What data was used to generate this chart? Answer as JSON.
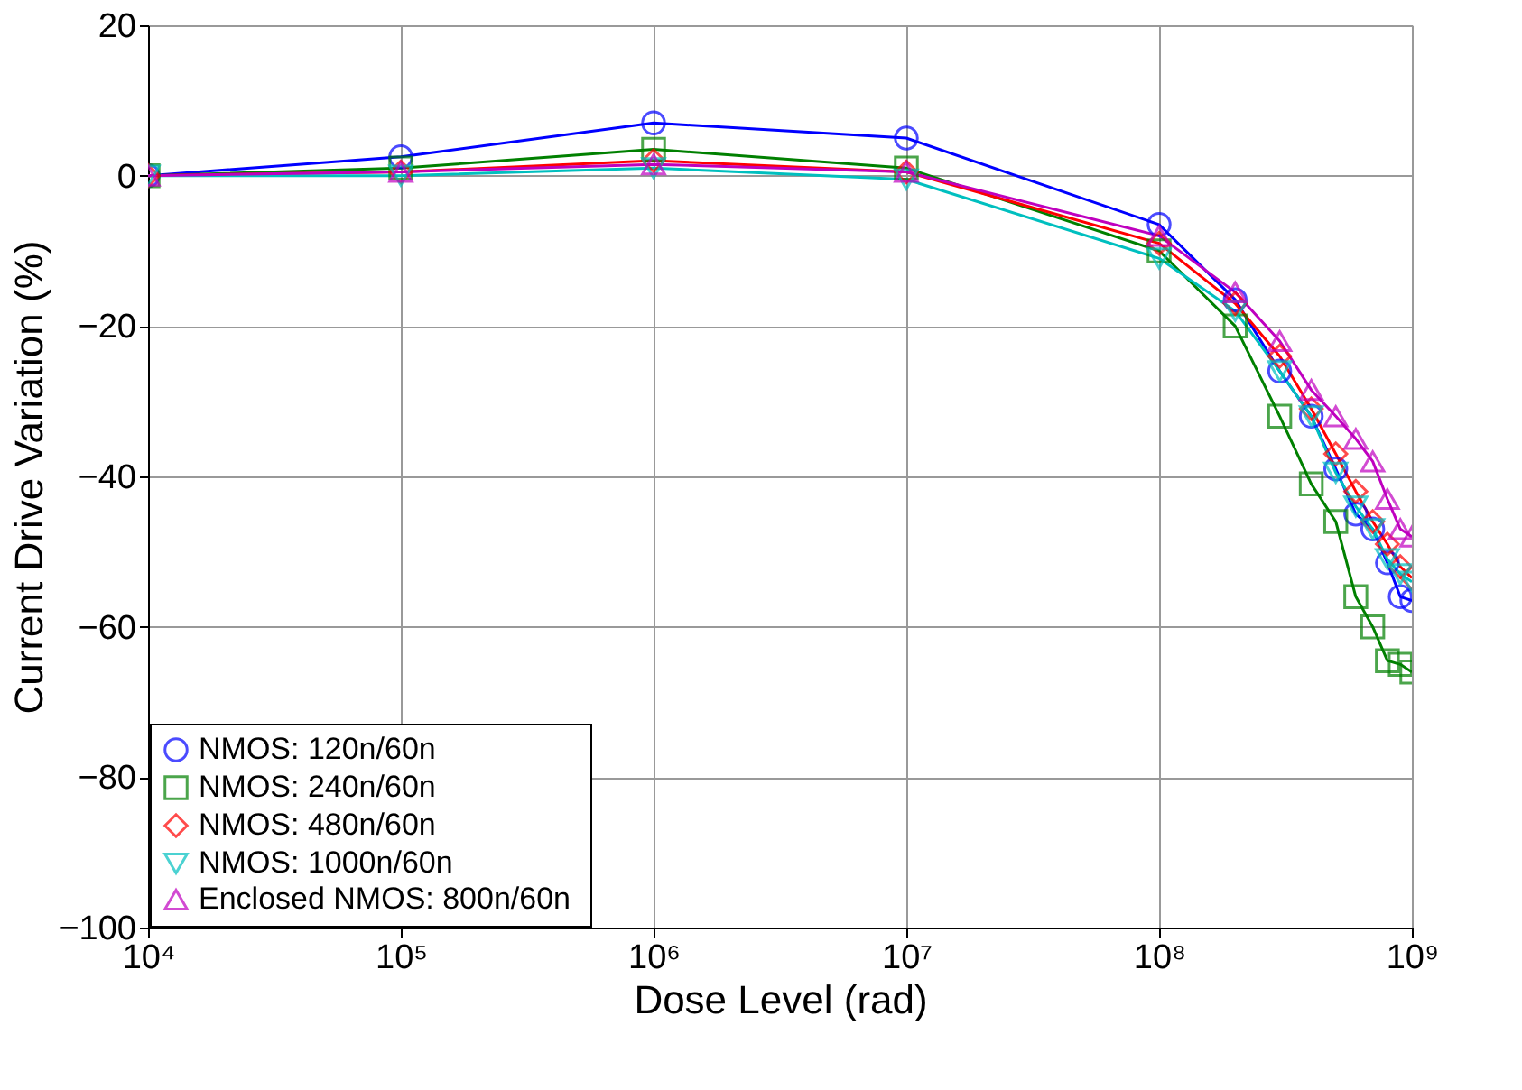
{
  "chart_data": {
    "type": "line",
    "xlabel": "Dose Level (rad)",
    "ylabel": "Current Drive Variation  (%)",
    "log": "x",
    "x": [
      10000,
      100000,
      1000000,
      10000000,
      100000000,
      200000000,
      300000000,
      400000000,
      500000000,
      600000000,
      700000000,
      800000000,
      900000000,
      1000000000
    ],
    "xlim": [
      10000,
      1000000000
    ],
    "xticks": [
      {
        "value": 10000,
        "label": "10⁴"
      },
      {
        "value": 100000,
        "label": "10⁵"
      },
      {
        "value": 1000000,
        "label": "10⁶"
      },
      {
        "value": 10000000,
        "label": "10⁷"
      },
      {
        "value": 100000000,
        "label": "10⁸"
      },
      {
        "value": 1000000000,
        "label": "10⁹"
      }
    ],
    "ylim": [
      -100,
      20
    ],
    "yticks": [
      -100,
      -80,
      -60,
      -40,
      -20,
      0,
      20
    ],
    "grid": true,
    "legend": "bottom left",
    "line_style": "solid",
    "series": [
      {
        "name": "NMOS:  120n/60n",
        "color": "#0000ff",
        "marker": "circle",
        "values": [
          0,
          2.5,
          7,
          5,
          -6.5,
          -16.5,
          -26,
          -32,
          -39,
          -45,
          -47,
          -51.5,
          -56,
          -56.5
        ]
      },
      {
        "name": "NMOS:  240n/60n",
        "color": "#008000",
        "marker": "square",
        "values": [
          0,
          1,
          3.5,
          1,
          -10,
          -20,
          -32,
          -41,
          -46,
          -56,
          -60,
          -64.5,
          -65,
          -66
        ]
      },
      {
        "name": "NMOS:  480n/60n",
        "color": "#ff0000",
        "marker": "diamond",
        "values": [
          0,
          0.5,
          2,
          0.5,
          -9,
          -17,
          -24,
          -31,
          -37,
          -42,
          -46,
          -49,
          -52,
          -53.5
        ]
      },
      {
        "name": "NMOS:  1000n/60n",
        "color": "#00bfbf",
        "marker": "triangle-down",
        "values": [
          0,
          0,
          1,
          -0.5,
          -11,
          -18,
          -26,
          -32,
          -39.5,
          -44,
          -47,
          -51,
          -53,
          -54
        ]
      },
      {
        "name": "Enclosed NMOS:  800n/60n",
        "color": "#bf00bf",
        "marker": "triangle",
        "values": [
          0,
          0.5,
          1.5,
          0.5,
          -8,
          -15.5,
          -22,
          -28.5,
          -32,
          -35,
          -38,
          -43,
          -47,
          -48
        ]
      }
    ]
  }
}
